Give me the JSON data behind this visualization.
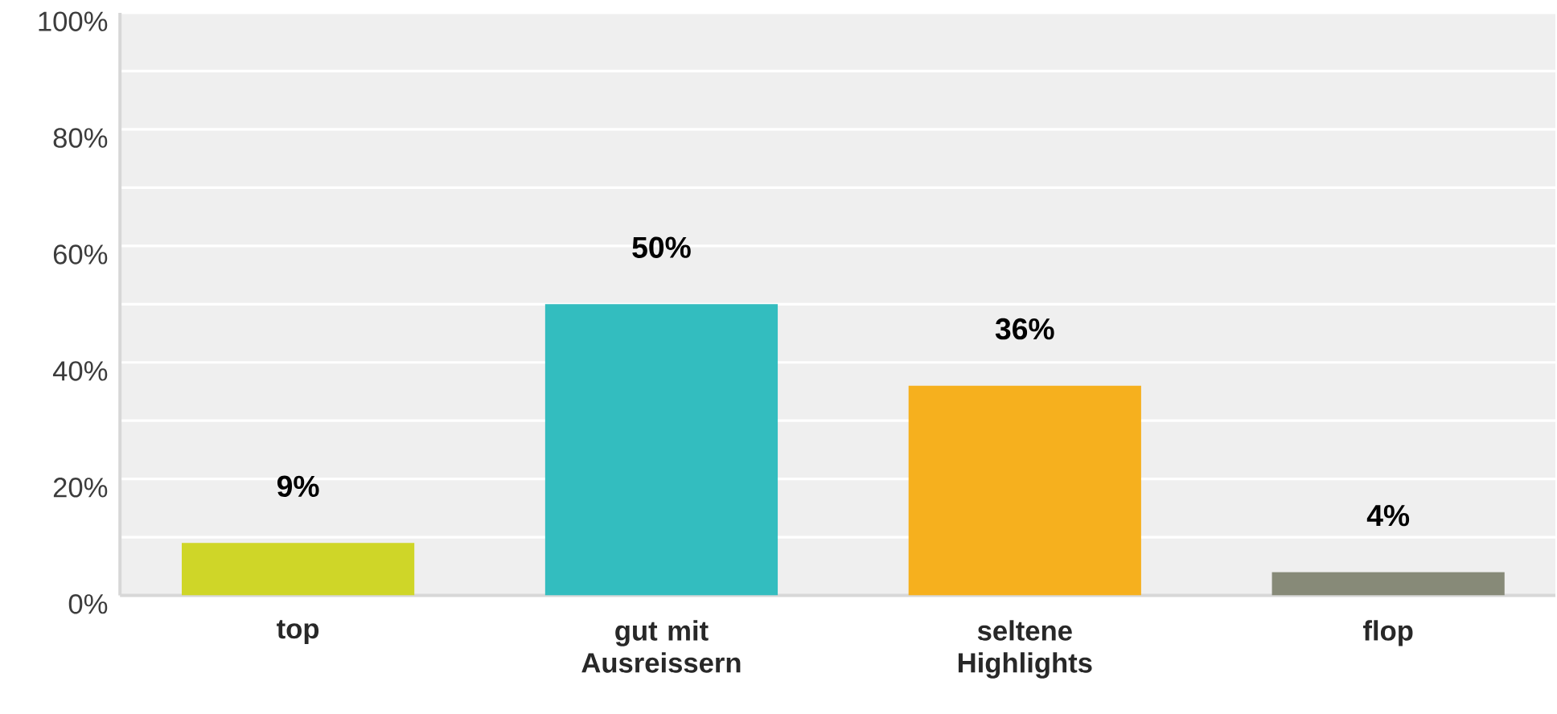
{
  "chart_data": {
    "type": "bar",
    "categories": [
      "top",
      "gut mit Ausreissern",
      "seltene Highlights",
      "flop"
    ],
    "values": [
      9,
      50,
      36,
      4
    ],
    "colors": [
      "#cfd628",
      "#33bdbf",
      "#f6b01e",
      "#878a78"
    ],
    "value_labels": [
      "9%",
      "50%",
      "36%",
      "4%"
    ],
    "ylim": [
      0,
      100
    ],
    "yticks": [
      {
        "value": 0,
        "label": "0%"
      },
      {
        "value": 10,
        "label": null
      },
      {
        "value": 20,
        "label": "20%"
      },
      {
        "value": 30,
        "label": null
      },
      {
        "value": 40,
        "label": "40%"
      },
      {
        "value": 50,
        "label": null
      },
      {
        "value": 60,
        "label": "60%"
      },
      {
        "value": 70,
        "label": null
      },
      {
        "value": 80,
        "label": "80%"
      },
      {
        "value": 90,
        "label": null
      },
      {
        "value": 100,
        "label": "100%"
      }
    ],
    "grid": "y"
  }
}
